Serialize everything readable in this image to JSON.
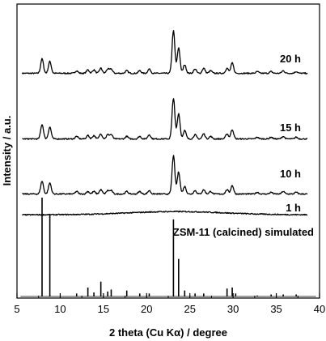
{
  "chart_data": {
    "type": "line",
    "xlabel": "2 theta (Cu Kα) / degree",
    "ylabel": "Intensity / a.u.",
    "xlim": [
      5,
      40
    ],
    "x_ticks": [
      5,
      10,
      15,
      20,
      25,
      30,
      35,
      40
    ],
    "grid": false,
    "series": [
      {
        "name": "20 h",
        "peaks": [
          [
            7.9,
            17
          ],
          [
            8.8,
            14
          ],
          [
            11.9,
            3
          ],
          [
            13.2,
            4
          ],
          [
            13.9,
            4
          ],
          [
            14.7,
            6
          ],
          [
            15.5,
            5
          ],
          [
            15.9,
            5
          ],
          [
            17.7,
            3
          ],
          [
            19.2,
            3
          ],
          [
            20.3,
            5
          ],
          [
            23.1,
            50
          ],
          [
            23.7,
            30
          ],
          [
            24.4,
            10
          ],
          [
            25.6,
            5
          ],
          [
            26.6,
            6
          ],
          [
            27.4,
            3
          ],
          [
            29.3,
            6
          ],
          [
            29.9,
            12
          ],
          [
            32.8,
            2
          ],
          [
            34.4,
            2
          ],
          [
            35.8,
            3
          ],
          [
            37.3,
            2
          ]
        ],
        "baseline": 0.5
      },
      {
        "name": "15 h",
        "peaks": [
          [
            7.9,
            17
          ],
          [
            8.8,
            14
          ],
          [
            11.9,
            3
          ],
          [
            13.2,
            4
          ],
          [
            13.9,
            4
          ],
          [
            14.7,
            6
          ],
          [
            15.5,
            5
          ],
          [
            15.9,
            5
          ],
          [
            17.7,
            3
          ],
          [
            19.2,
            3
          ],
          [
            20.3,
            5
          ],
          [
            23.1,
            48
          ],
          [
            23.7,
            30
          ],
          [
            24.4,
            10
          ],
          [
            25.6,
            5
          ],
          [
            26.6,
            6
          ],
          [
            27.4,
            3
          ],
          [
            29.3,
            6
          ],
          [
            29.9,
            11
          ],
          [
            32.8,
            2
          ],
          [
            34.4,
            2
          ],
          [
            35.8,
            3
          ],
          [
            37.3,
            2
          ]
        ],
        "baseline": 0.5
      },
      {
        "name": "10 h",
        "peaks": [
          [
            7.9,
            15
          ],
          [
            8.8,
            13
          ],
          [
            11.9,
            3
          ],
          [
            13.2,
            3
          ],
          [
            13.9,
            3
          ],
          [
            14.7,
            5
          ],
          [
            15.5,
            4
          ],
          [
            15.9,
            4
          ],
          [
            17.7,
            3
          ],
          [
            19.2,
            3
          ],
          [
            20.3,
            4
          ],
          [
            23.1,
            45
          ],
          [
            23.7,
            26
          ],
          [
            24.4,
            9
          ],
          [
            25.6,
            4
          ],
          [
            26.6,
            5
          ],
          [
            27.4,
            3
          ],
          [
            29.3,
            5
          ],
          [
            29.9,
            10
          ],
          [
            32.8,
            2
          ],
          [
            34.4,
            2
          ],
          [
            35.8,
            3
          ],
          [
            37.3,
            2
          ]
        ],
        "baseline": 0.5
      },
      {
        "name": "1 h",
        "peaks": [],
        "baseline": 0.8,
        "amorphous_hump": {
          "center": 23.5,
          "width": 5.5,
          "height": 4
        }
      },
      {
        "name": "ZSM-11 (calcined) simulated",
        "sticks": [
          [
            7.9,
            100
          ],
          [
            8.8,
            82
          ],
          [
            11.9,
            3
          ],
          [
            13.2,
            9
          ],
          [
            13.9,
            4
          ],
          [
            14.7,
            15
          ],
          [
            15.5,
            5
          ],
          [
            15.9,
            7
          ],
          [
            17.7,
            6
          ],
          [
            19.2,
            3
          ],
          [
            20.3,
            3
          ],
          [
            23.1,
            78
          ],
          [
            23.7,
            38
          ],
          [
            24.4,
            6
          ],
          [
            25.6,
            3
          ],
          [
            26.6,
            3
          ],
          [
            29.3,
            8
          ],
          [
            29.9,
            9
          ],
          [
            30.3,
            3
          ],
          [
            32.8,
            1
          ],
          [
            34.4,
            2
          ],
          [
            35.8,
            2
          ],
          [
            37.3,
            2
          ]
        ]
      }
    ]
  }
}
